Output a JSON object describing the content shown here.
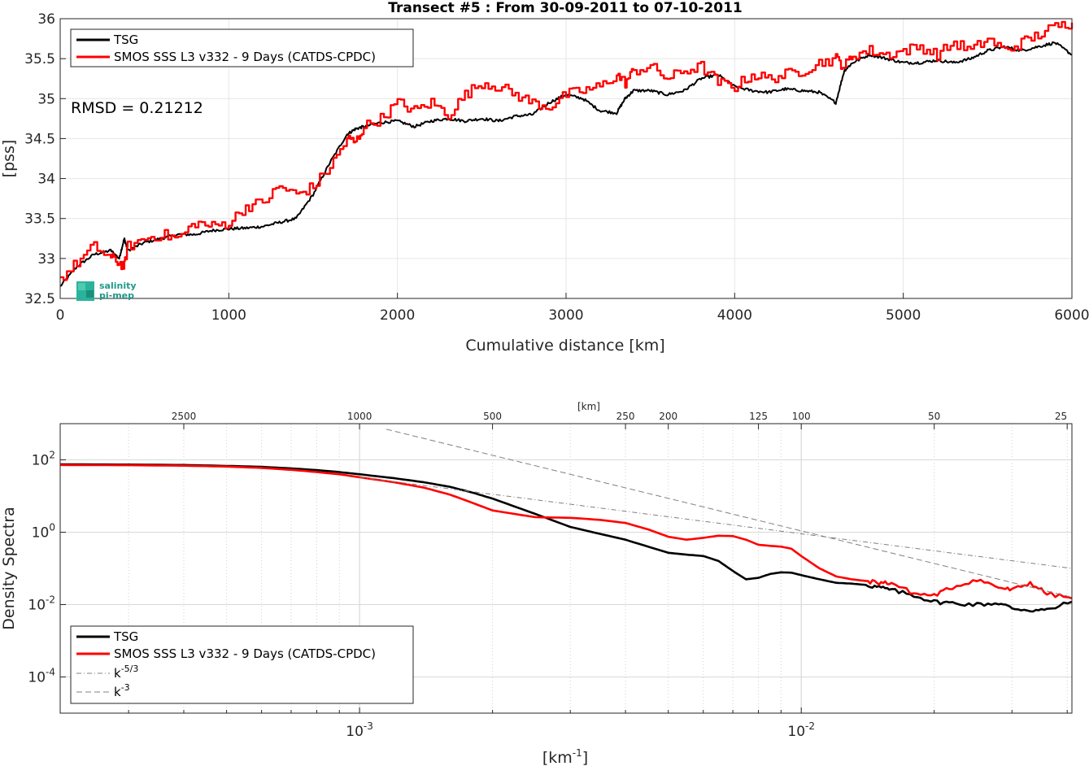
{
  "chart_data": [
    {
      "type": "line",
      "title": "Transect #5 : From 30-09-2011 to 07-10-2011",
      "xlabel": "Cumulative distance [km]",
      "ylabel": "[pss]",
      "xlim": [
        0,
        6000
      ],
      "ylim": [
        32.5,
        36
      ],
      "xticks": [
        "0",
        "1000",
        "2000",
        "3000",
        "4000",
        "5000",
        "6000"
      ],
      "yticks": [
        "32.5",
        "33",
        "33.5",
        "34",
        "34.5",
        "35",
        "35.5",
        "36"
      ],
      "grid": true,
      "legend_position": "top-left",
      "annotation": "RMSD = 0.21212",
      "logo_text": [
        "salinity",
        "pi-mep"
      ],
      "series": [
        {
          "name": "TSG",
          "color": "#000000",
          "x": [
            0,
            100,
            200,
            300,
            350,
            380,
            400,
            500,
            600,
            700,
            800,
            900,
            1000,
            1100,
            1200,
            1300,
            1400,
            1500,
            1600,
            1700,
            1750,
            1800,
            1900,
            2000,
            2100,
            2200,
            2300,
            2400,
            2500,
            2600,
            2700,
            2800,
            2900,
            3000,
            3100,
            3200,
            3300,
            3350,
            3400,
            3500,
            3600,
            3700,
            3800,
            3900,
            4000,
            4100,
            4200,
            4300,
            4400,
            4500,
            4600,
            4650,
            4700,
            4800,
            4900,
            5000,
            5100,
            5200,
            5300,
            5400,
            5500,
            5600,
            5700,
            5800,
            5900,
            6000
          ],
          "y": [
            32.65,
            32.9,
            33.05,
            33.1,
            33.0,
            33.25,
            33.1,
            33.2,
            33.25,
            33.3,
            33.3,
            33.35,
            33.37,
            33.38,
            33.4,
            33.45,
            33.5,
            33.8,
            34.2,
            34.55,
            34.62,
            34.65,
            34.7,
            34.72,
            34.65,
            34.72,
            34.75,
            34.72,
            34.75,
            34.72,
            34.78,
            34.8,
            34.95,
            35.05,
            35.0,
            34.85,
            34.82,
            35.0,
            35.1,
            35.1,
            35.05,
            35.1,
            35.25,
            35.3,
            35.15,
            35.1,
            35.08,
            35.12,
            35.1,
            35.08,
            34.95,
            35.35,
            35.45,
            35.55,
            35.5,
            35.45,
            35.45,
            35.48,
            35.45,
            35.5,
            35.6,
            35.65,
            35.6,
            35.65,
            35.7,
            35.55
          ]
        },
        {
          "name": "SMOS SSS L3 v332 - 9 Days (CATDS-CPDC)",
          "color": "#ff0000",
          "x": [
            0,
            100,
            200,
            300,
            350,
            380,
            400,
            500,
            600,
            700,
            800,
            900,
            1000,
            1100,
            1200,
            1300,
            1400,
            1500,
            1600,
            1700,
            1750,
            1800,
            1900,
            2000,
            2100,
            2200,
            2300,
            2400,
            2500,
            2600,
            2700,
            2800,
            2900,
            3000,
            3100,
            3200,
            3300,
            3350,
            3400,
            3500,
            3600,
            3700,
            3800,
            3900,
            4000,
            4100,
            4200,
            4300,
            4400,
            4500,
            4600,
            4650,
            4700,
            4800,
            4900,
            5000,
            5100,
            5200,
            5300,
            5400,
            5500,
            5600,
            5700,
            5800,
            5900,
            6000
          ],
          "y": [
            32.75,
            32.95,
            33.15,
            33.0,
            32.95,
            32.9,
            33.15,
            33.25,
            33.3,
            33.25,
            33.45,
            33.4,
            33.45,
            33.65,
            33.7,
            33.9,
            33.8,
            33.9,
            34.15,
            34.5,
            34.45,
            34.65,
            34.75,
            34.95,
            34.85,
            34.95,
            34.8,
            35.05,
            35.2,
            35.15,
            35.05,
            34.95,
            34.9,
            35.05,
            35.1,
            35.15,
            35.3,
            35.2,
            35.35,
            35.4,
            35.25,
            35.35,
            35.4,
            35.2,
            35.15,
            35.3,
            35.25,
            35.3,
            35.35,
            35.45,
            35.5,
            35.4,
            35.55,
            35.6,
            35.55,
            35.6,
            35.65,
            35.55,
            35.7,
            35.6,
            35.75,
            35.6,
            35.7,
            35.8,
            35.9,
            35.95
          ]
        }
      ]
    },
    {
      "type": "line",
      "title": "",
      "xlabel": "[km-1]",
      "xlabel_base": "[km",
      "xlabel_exp": "-1",
      "xlabel_close": "]",
      "ylabel": "Density Spectra",
      "xscale": "log",
      "yscale": "log",
      "xlim": [
        0.00021,
        0.041
      ],
      "ylim": [
        1e-05,
        1000
      ],
      "xticks": [
        {
          "base": "10",
          "exp": "-3",
          "value": 0.001
        },
        {
          "base": "10",
          "exp": "-2",
          "value": 0.01
        }
      ],
      "yticks": [
        {
          "base": "10",
          "exp": "2",
          "value": 100
        },
        {
          "base": "10",
          "exp": "0",
          "value": 1
        },
        {
          "base": "10",
          "exp": "-2",
          "value": 0.01
        },
        {
          "base": "10",
          "exp": "-4",
          "value": 0.0001
        }
      ],
      "top_axis_label": "[km]",
      "top_ticks": [
        {
          "label": "2500",
          "value": 0.0004
        },
        {
          "label": "1000",
          "value": 0.001
        },
        {
          "label": "500",
          "value": 0.002
        },
        {
          "label": "250",
          "value": 0.004
        },
        {
          "label": "200",
          "value": 0.005
        },
        {
          "label": "125",
          "value": 0.008
        },
        {
          "label": "100",
          "value": 0.01
        },
        {
          "label": "50",
          "value": 0.02
        },
        {
          "label": "25",
          "value": 0.04
        }
      ],
      "grid": true,
      "legend_position": "bottom-left",
      "series": [
        {
          "name": "TSG",
          "color": "#000000",
          "x": [
            0.00021,
            0.0003,
            0.0004,
            0.0005,
            0.0006,
            0.0007,
            0.0008,
            0.0009,
            0.001,
            0.0012,
            0.0014,
            0.0016,
            0.0018,
            0.002,
            0.0025,
            0.003,
            0.0035,
            0.004,
            0.0045,
            0.005,
            0.0055,
            0.006,
            0.0065,
            0.007,
            0.0075,
            0.008,
            0.0085,
            0.009,
            0.0095,
            0.01,
            0.011,
            0.012,
            0.013,
            0.014,
            0.015,
            0.016,
            0.018,
            0.02,
            0.022,
            0.025,
            0.028,
            0.03,
            0.033,
            0.036,
            0.041
          ],
          "y": [
            75,
            74,
            72,
            68,
            64,
            58,
            52,
            46,
            40,
            31,
            24,
            18,
            12.5,
            8.5,
            3.2,
            1.4,
            0.9,
            0.62,
            0.4,
            0.27,
            0.24,
            0.22,
            0.16,
            0.085,
            0.05,
            0.055,
            0.07,
            0.078,
            0.076,
            0.065,
            0.05,
            0.04,
            0.038,
            0.035,
            0.03,
            0.025,
            0.018,
            0.012,
            0.011,
            0.01,
            0.011,
            0.008,
            0.007,
            0.007,
            0.012
          ]
        },
        {
          "name": "SMOS SSS L3 v332 - 9 Days (CATDS-CPDC)",
          "color": "#ff0000",
          "x": [
            0.00021,
            0.0003,
            0.0004,
            0.0005,
            0.0006,
            0.0007,
            0.0008,
            0.0009,
            0.001,
            0.0012,
            0.0014,
            0.0016,
            0.0018,
            0.002,
            0.0025,
            0.003,
            0.0035,
            0.004,
            0.0045,
            0.005,
            0.0055,
            0.006,
            0.0065,
            0.007,
            0.0075,
            0.008,
            0.0085,
            0.009,
            0.0095,
            0.01,
            0.011,
            0.012,
            0.013,
            0.014,
            0.015,
            0.016,
            0.018,
            0.02,
            0.022,
            0.025,
            0.028,
            0.03,
            0.033,
            0.036,
            0.041
          ],
          "y": [
            72,
            71,
            69,
            65,
            60,
            53,
            46,
            40,
            33,
            24,
            17,
            11,
            6.5,
            4.0,
            2.6,
            2.5,
            2.2,
            1.8,
            1.2,
            0.75,
            0.62,
            0.7,
            0.8,
            0.78,
            0.62,
            0.45,
            0.42,
            0.4,
            0.35,
            0.22,
            0.1,
            0.06,
            0.05,
            0.045,
            0.04,
            0.04,
            0.02,
            0.018,
            0.03,
            0.05,
            0.03,
            0.025,
            0.04,
            0.02,
            0.015
          ]
        },
        {
          "name": "k-5/3",
          "name_base": "k",
          "name_exp": "-5/3",
          "color": "#808080",
          "dash": "dashdot",
          "x": [
            0.001,
            0.041
          ],
          "y": [
            33,
            0.1
          ]
        },
        {
          "name": "k-3",
          "name_base": "k",
          "name_exp": "-3",
          "color": "#808080",
          "dash": "dash",
          "x": [
            0.00115,
            0.041
          ],
          "y": [
            700,
            0.016
          ]
        }
      ]
    }
  ]
}
